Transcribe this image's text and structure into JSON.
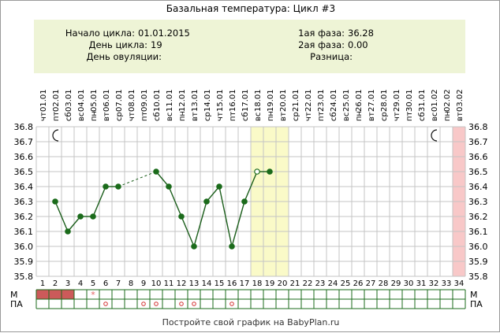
{
  "title": "Базальная температура: Цикл #3",
  "info": {
    "cycle_start_label": "Начало цикла:",
    "cycle_start_value": "01.01.2015",
    "cycle_day_label": "День цикла:",
    "cycle_day_value": "19",
    "ovulation_day_label": "День овуляции:",
    "ovulation_day_value": "",
    "phase1_label": "1ая фаза:",
    "phase1_value": "36.28",
    "phase2_label": "2ая фаза:",
    "phase2_value": "0.00",
    "difference_label": "Разница:",
    "difference_value": ""
  },
  "footer": "Постройте свой график на BabyPlan.ru",
  "colors": {
    "info_background": "#eef4d6",
    "grid": "#c4c4c4",
    "line": "#1b5e1b",
    "marker": "#1b6b1b",
    "highlight": "#fafac8",
    "end_column": "#f8c8c8",
    "menstruation": "#cc5a5a",
    "star": "#e36060",
    "circle_mark": "#d33333",
    "table_border": "#1b6b1b"
  },
  "chart_data": {
    "type": "line",
    "ylim": [
      35.8,
      36.8
    ],
    "yticks": [
      "35.8",
      "35.9",
      "36.0",
      "36.1",
      "36.2",
      "36.3",
      "36.4",
      "36.5",
      "36.6",
      "36.7",
      "36.8"
    ],
    "days": [
      "1",
      "2",
      "3",
      "4",
      "5",
      "6",
      "7",
      "8",
      "9",
      "10",
      "11",
      "12",
      "13",
      "14",
      "15",
      "16",
      "17",
      "18",
      "19",
      "20",
      "21",
      "22",
      "23",
      "24",
      "25",
      "26",
      "27",
      "28",
      "29",
      "30",
      "31",
      "32",
      "33",
      "34"
    ],
    "dates": [
      "01.01",
      "02.01",
      "03.01",
      "04.01",
      "05.01",
      "06.01",
      "07.01",
      "08.01",
      "09.01",
      "10.01",
      "11.01",
      "12.01",
      "13.01",
      "14.01",
      "15.01",
      "16.01",
      "17.01",
      "18.01",
      "19.01",
      "20.01",
      "21.01",
      "22.01",
      "23.01",
      "24.01",
      "25.01",
      "26.01",
      "27.01",
      "28.01",
      "29.01",
      "30.01",
      "31.01",
      "01.02",
      "02.02",
      "03.02"
    ],
    "weekdays": [
      "чт",
      "пт",
      "сб",
      "вс",
      "пн",
      "вт",
      "ср",
      "чт",
      "пт",
      "сб",
      "вс",
      "пн",
      "вт",
      "ср",
      "чт",
      "пт",
      "сб",
      "вс",
      "пн",
      "вт",
      "ср",
      "чт",
      "пт",
      "сб",
      "вс",
      "пн",
      "вт",
      "ср",
      "чт",
      "пт",
      "сб",
      "вс",
      "пн",
      "вт"
    ],
    "values": [
      null,
      36.3,
      36.1,
      36.2,
      36.2,
      36.4,
      36.4,
      null,
      null,
      36.5,
      36.4,
      36.2,
      36.0,
      36.3,
      36.4,
      36.0,
      36.3,
      36.5,
      36.5,
      null,
      null,
      null,
      null,
      null,
      null,
      null,
      null,
      null,
      null,
      null,
      null,
      null,
      null,
      null
    ],
    "open_marker_days": [
      18
    ],
    "dashed_segments": [
      [
        7,
        10
      ]
    ],
    "highlight_days": [
      18,
      19,
      20
    ],
    "end_day": 34,
    "moon_icon_days": [
      2,
      32
    ],
    "menstruation_days": [
      1,
      2,
      3
    ],
    "star_days": [
      5
    ],
    "pa_mark_days": [
      6,
      9,
      10,
      12,
      13,
      16
    ],
    "row_label_m": "М",
    "row_label_pa": "ПА"
  }
}
